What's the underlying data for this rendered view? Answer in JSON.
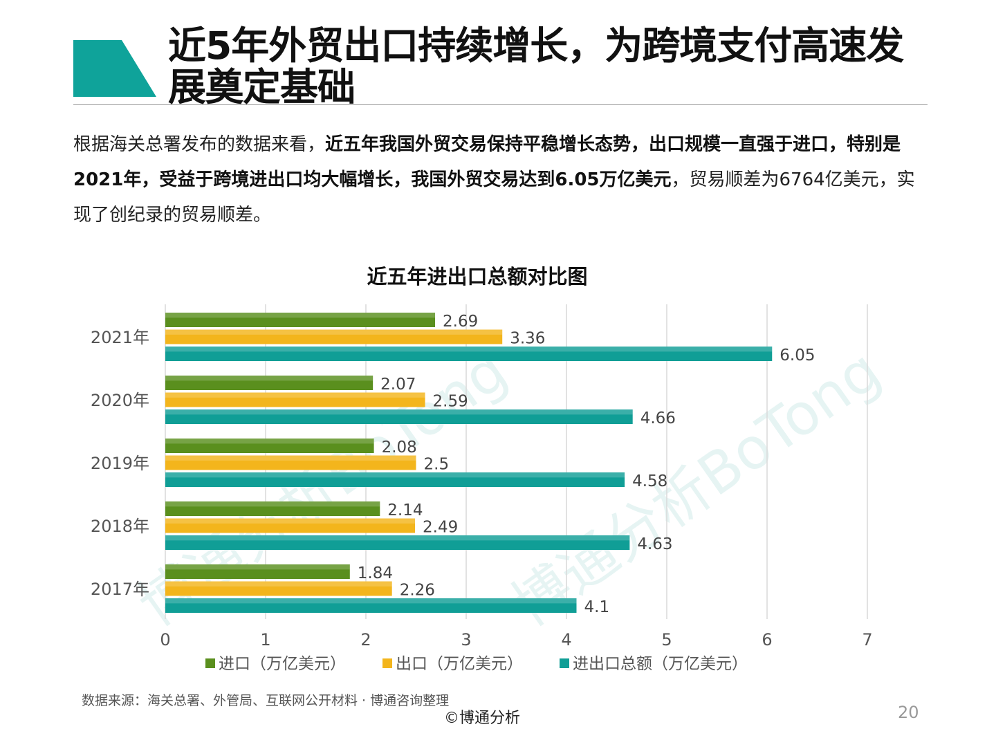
{
  "slide": {
    "title": "近5年外贸出口持续增长，为跨境支付高速发展奠定基础",
    "accent_color": "#0fa39a",
    "paragraph": {
      "p1": "根据海关总署发布的数据来看，",
      "b1": "近五年我国外贸交易保持平稳增长态势，出口规模一直强于进口，特别是2021年，受益于跨境进出口均大幅增长，我国外贸交易达到6.05万亿美元",
      "p2": "，贸易顺差为6764亿美元，实现了创纪录的贸易顺差。"
    },
    "source": "数据来源：海关总署、外管局、互联网公开材料 · 博通咨询整理",
    "copyright": "©博通分析",
    "page_number": "20",
    "watermark": [
      "博通分析BoTong",
      "博通分析BoTong"
    ]
  },
  "chart_data": {
    "type": "bar",
    "orientation": "horizontal",
    "title": "近五年进出口总额对比图",
    "categories": [
      "2021年",
      "2020年",
      "2019年",
      "2018年",
      "2017年"
    ],
    "series": [
      {
        "name": "进口（万亿美元）",
        "color": "#5a8f1e",
        "values": [
          2.69,
          2.07,
          2.08,
          2.14,
          1.84
        ]
      },
      {
        "name": "出口（万亿美元）",
        "color": "#f3b51c",
        "values": [
          3.36,
          2.59,
          2.5,
          2.49,
          2.26
        ]
      },
      {
        "name": "进出口总额（万亿美元）",
        "color": "#109e96",
        "values": [
          6.05,
          4.66,
          4.58,
          4.63,
          4.1
        ]
      }
    ],
    "xlim": [
      0,
      7
    ],
    "x_ticks": [
      "0",
      "1",
      "2",
      "3",
      "4",
      "5",
      "6",
      "7"
    ],
    "grid": true,
    "legend_position": "bottom"
  }
}
